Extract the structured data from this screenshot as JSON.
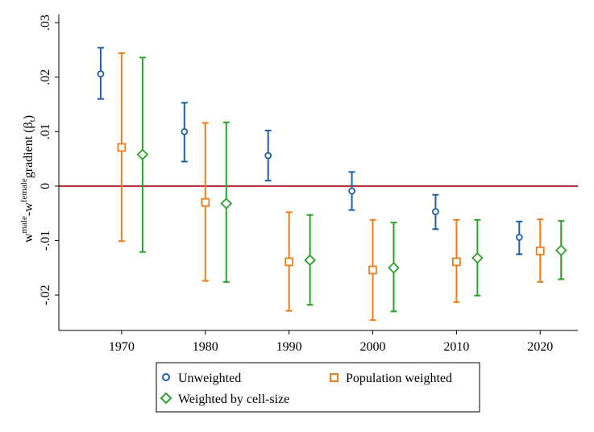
{
  "chart_data": {
    "type": "scatter",
    "x_ticks": [
      1970,
      1980,
      1990,
      2000,
      2010,
      2020
    ],
    "y_ticks": [
      -0.02,
      -0.01,
      0,
      0.01,
      0.02,
      0.03
    ],
    "y_tick_labels": [
      "-.02",
      "-.01",
      "0",
      ".01",
      ".02",
      ".03"
    ],
    "xlim": [
      1962.5,
      2024.5
    ],
    "ylim": [
      -0.0265,
      0.0315
    ],
    "ylabel": {
      "w1": "w",
      "sup1": "male",
      "mid": "-w",
      "sup2": "female",
      "rest": "gradient (β",
      "sub": "t",
      "end": ")"
    },
    "reference_line": {
      "y": 0,
      "color": "#b22234"
    },
    "legend_position": "bottom",
    "series": [
      {
        "name": "Unweighted",
        "marker": "circle",
        "color": "#1f5fa5",
        "x": [
          1967.5,
          1977.5,
          1987.5,
          1997.5,
          2007.5,
          2017.5
        ],
        "y": [
          0.0206,
          0.01,
          0.0056,
          -0.0009,
          -0.0047,
          -0.0094
        ],
        "lower": [
          0.016,
          0.0045,
          0.001,
          -0.0044,
          -0.0079,
          -0.0125
        ],
        "upper": [
          0.0254,
          0.0153,
          0.0102,
          0.0026,
          -0.0016,
          -0.0065
        ]
      },
      {
        "name": "Population weighted",
        "marker": "square",
        "color": "#f07d1a",
        "x": [
          1970,
          1980,
          1990,
          2000,
          2010,
          2020
        ],
        "y": [
          0.0071,
          -0.003,
          -0.0139,
          -0.0154,
          -0.0139,
          -0.0119
        ],
        "lower": [
          -0.0101,
          -0.0174,
          -0.0229,
          -0.0246,
          -0.0213,
          -0.0176
        ],
        "upper": [
          0.0244,
          0.0116,
          -0.0048,
          -0.0062,
          -0.0062,
          -0.0061
        ]
      },
      {
        "name": "Weighted by cell-size",
        "marker": "diamond",
        "color": "#2ca02c",
        "x": [
          1972.5,
          1982.5,
          1992.5,
          2002.5,
          2012.5,
          2022.5
        ],
        "y": [
          0.0058,
          -0.0032,
          -0.0136,
          -0.015,
          -0.0132,
          -0.0118
        ],
        "lower": [
          -0.0121,
          -0.0176,
          -0.0218,
          -0.023,
          -0.0201,
          -0.0171
        ],
        "upper": [
          0.0236,
          0.0117,
          -0.0053,
          -0.0067,
          -0.0062,
          -0.0064
        ]
      }
    ]
  }
}
